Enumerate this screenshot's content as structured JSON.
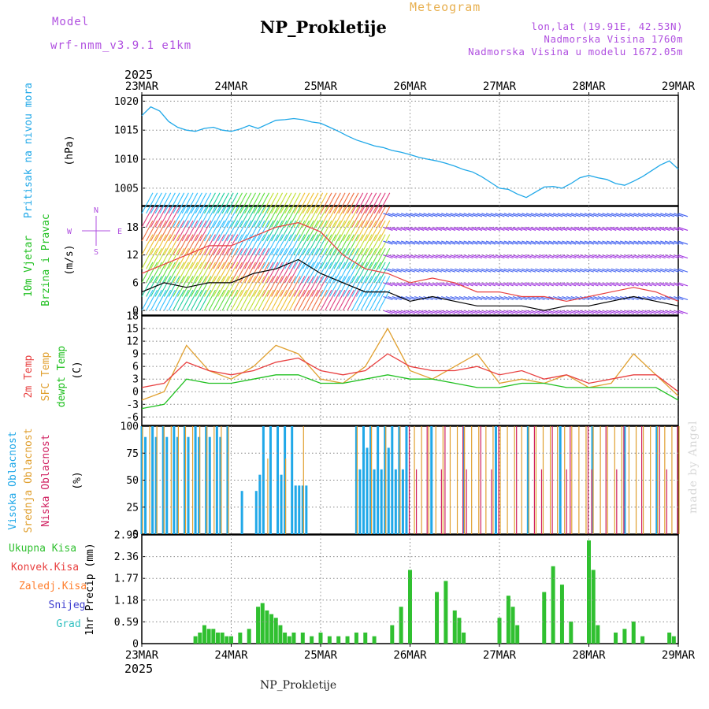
{
  "header": {
    "model_label": "Model",
    "model_name": "wrf-nmm_v3.9.1 e1km",
    "title": "NP_Prokletije",
    "meteogram_label": "Meteogram",
    "lonlat": "lon,lat (19.91E, 42.53N)",
    "elevation": "Nadmorska Visina 1760m",
    "model_elevation": "Nadmorska Visina u modelu 1672.05m",
    "footer_title": "NP_Prokletije",
    "made_by": "made by Angel"
  },
  "colors": {
    "pressure": "#20a8e8",
    "wind_label": "#20c020",
    "wind_purple": "#b050e0",
    "temp2m": "#e84040",
    "sfc_temp": "#e0a030",
    "dewpoint": "#20c020",
    "cloud_high": "#20a8e8",
    "cloud_mid": "#e0a030",
    "cloud_low": "#d02060",
    "precip_total": "#30c030",
    "precip_conv": "#e84040",
    "precip_grid": "#ff8030",
    "snow": "#4040d0",
    "hail": "#30c0c0"
  },
  "chart_data": [
    {
      "type": "line",
      "panel": "pressure",
      "year": "2025",
      "x_ticks": [
        "23MAR",
        "24MAR",
        "25MAR",
        "26MAR",
        "27MAR",
        "28MAR",
        "29MAR"
      ],
      "ylabel_left": "Pritisak na nivou mora",
      "ylabel_unit": "(hPa)",
      "yticks": [
        "1005",
        "1010",
        "1015",
        "1020"
      ],
      "ylim": [
        1002,
        1021
      ],
      "x_days": [
        0,
        0.1,
        0.2,
        0.3,
        0.4,
        0.5,
        0.6,
        0.7,
        0.8,
        0.9,
        1.0,
        1.1,
        1.2,
        1.3,
        1.4,
        1.5,
        1.6,
        1.7,
        1.8,
        1.9,
        2.0,
        2.1,
        2.2,
        2.3,
        2.4,
        2.5,
        2.6,
        2.7,
        2.8,
        2.9,
        3.0,
        3.1,
        3.2,
        3.3,
        3.4,
        3.5,
        3.6,
        3.7,
        3.8,
        3.9,
        4.0,
        4.1,
        4.2,
        4.3,
        4.4,
        4.5,
        4.6,
        4.7,
        4.8,
        4.9,
        5.0,
        5.1,
        5.2,
        5.3,
        5.4,
        5.5,
        5.6,
        5.7,
        5.8,
        5.9,
        6.0
      ],
      "values": [
        1017.5,
        1019.0,
        1018.3,
        1016.5,
        1015.5,
        1015.0,
        1014.8,
        1015.3,
        1015.5,
        1015.0,
        1014.8,
        1015.2,
        1015.8,
        1015.3,
        1016.0,
        1016.7,
        1016.8,
        1017.0,
        1016.8,
        1016.4,
        1016.2,
        1015.5,
        1014.8,
        1014.0,
        1013.3,
        1012.8,
        1012.3,
        1012.0,
        1011.5,
        1011.2,
        1010.8,
        1010.3,
        1010.0,
        1009.7,
        1009.3,
        1008.8,
        1008.2,
        1007.8,
        1007.0,
        1006.0,
        1005.0,
        1004.8,
        1004.0,
        1003.4,
        1004.3,
        1005.2,
        1005.3,
        1005.0,
        1005.8,
        1006.8,
        1007.2,
        1006.8,
        1006.5,
        1005.8,
        1005.5,
        1006.2,
        1007.0,
        1008.0,
        1009.0,
        1009.7,
        1008.3
      ]
    },
    {
      "type": "line",
      "panel": "wind",
      "ylabel_left1": "10m Vjetar",
      "ylabel_left2": "Brzina i Pravac",
      "ylabel_unit": "(m/s)",
      "compass": {
        "n": "N",
        "s": "S",
        "w": "W",
        "e": "E"
      },
      "yticks": [
        "0",
        "6",
        "12",
        "18"
      ],
      "ylim": [
        -1,
        22.5
      ],
      "x_days": [
        0,
        0.25,
        0.5,
        0.75,
        1.0,
        1.25,
        1.5,
        1.75,
        2.0,
        2.25,
        2.5,
        2.75,
        3.0,
        3.25,
        3.5,
        3.75,
        4.0,
        4.25,
        4.5,
        4.75,
        5.0,
        5.25,
        5.5,
        5.75,
        6.0
      ],
      "speed": [
        4,
        6,
        5,
        6,
        6,
        8,
        9,
        11,
        8,
        6,
        4,
        4,
        2,
        3,
        2,
        1,
        1,
        1,
        0,
        1,
        1,
        2,
        3,
        2,
        1
      ],
      "gust": [
        8,
        10,
        12,
        14,
        14,
        16,
        18,
        19,
        17,
        12,
        9,
        8,
        6,
        7,
        6,
        4,
        4,
        3,
        3,
        2,
        3,
        4,
        5,
        4,
        2
      ]
    },
    {
      "type": "line",
      "panel": "temperature",
      "ylabel_labels": [
        "2m Temp",
        "SFC Temp",
        "dewpt Temp"
      ],
      "ylabel_unit": "(C)",
      "yticks": [
        "-6",
        "-3",
        "0",
        "3",
        "6",
        "9",
        "12",
        "15",
        "18"
      ],
      "ylim": [
        -8,
        18
      ],
      "x_days": [
        0,
        0.25,
        0.5,
        0.75,
        1.0,
        1.25,
        1.5,
        1.75,
        2.0,
        2.25,
        2.5,
        2.75,
        3.0,
        3.25,
        3.5,
        3.75,
        4.0,
        4.25,
        4.5,
        4.75,
        5.0,
        5.25,
        5.5,
        5.75,
        6.0
      ],
      "t2m": [
        1,
        2,
        7,
        5,
        4,
        5,
        7,
        8,
        5,
        4,
        5,
        9,
        6,
        5,
        5,
        6,
        4,
        5,
        3,
        4,
        2,
        3,
        4,
        4,
        0
      ],
      "sfc": [
        -2,
        0,
        11,
        5,
        3,
        6,
        11,
        9,
        3,
        2,
        6,
        15,
        5,
        3,
        6,
        9,
        2,
        3,
        2,
        4,
        1,
        2,
        9,
        4,
        -1
      ],
      "dewpt": [
        -4,
        -3,
        3,
        2,
        2,
        3,
        4,
        4,
        2,
        2,
        3,
        4,
        3,
        3,
        2,
        1,
        1,
        2,
        2,
        1,
        1,
        1,
        1,
        1,
        -2
      ]
    },
    {
      "type": "bar",
      "panel": "clouds",
      "ylabel_labels": [
        "Visoka Oblacnost",
        "Srednja Oblacnost",
        "Niska Oblacnost"
      ],
      "ylabel_unit": "(%)",
      "yticks": [
        "0",
        "25",
        "50",
        "75",
        "100"
      ],
      "ylim": [
        0,
        100
      ],
      "made_by": "made by Angel"
    },
    {
      "type": "bar",
      "panel": "precipitation",
      "legend": [
        "Ukupna Kisa",
        "Konvek.Kisa",
        "Zaledj.Kisa",
        "Snijeg",
        "Grad"
      ],
      "ylabel": "1hr Precip (mm)",
      "yticks": [
        "0",
        "0.59",
        "1.18",
        "1.77",
        "2.36",
        "2.95"
      ],
      "ylim": [
        0,
        2.95
      ],
      "x_ticks": [
        "23MAR",
        "24MAR",
        "25MAR",
        "26MAR",
        "27MAR",
        "28MAR",
        "29MAR"
      ],
      "year": "2025",
      "x_days": [
        0.6,
        0.65,
        0.7,
        0.75,
        0.8,
        0.85,
        0.9,
        0.95,
        1.0,
        1.1,
        1.2,
        1.3,
        1.35,
        1.4,
        1.45,
        1.5,
        1.55,
        1.6,
        1.65,
        1.7,
        1.8,
        1.9,
        2.0,
        2.1,
        2.2,
        2.3,
        2.4,
        2.5,
        2.6,
        2.8,
        2.9,
        3.0,
        3.3,
        3.4,
        3.5,
        3.55,
        3.6,
        4.0,
        4.1,
        4.15,
        4.2,
        4.5,
        4.6,
        4.7,
        4.8,
        5.0,
        5.05,
        5.1,
        5.3,
        5.4,
        5.5,
        5.6,
        5.9,
        5.95
      ],
      "values": [
        0.2,
        0.3,
        0.5,
        0.4,
        0.4,
        0.3,
        0.3,
        0.2,
        0.2,
        0.3,
        0.4,
        1.0,
        1.1,
        0.9,
        0.8,
        0.7,
        0.5,
        0.3,
        0.2,
        0.3,
        0.3,
        0.2,
        0.3,
        0.2,
        0.2,
        0.2,
        0.3,
        0.3,
        0.2,
        0.5,
        1.0,
        2.0,
        1.4,
        1.7,
        0.9,
        0.7,
        0.3,
        0.7,
        1.3,
        1.0,
        0.5,
        1.4,
        2.1,
        1.6,
        0.6,
        2.8,
        2.0,
        0.5,
        0.3,
        0.4,
        0.6,
        0.2,
        0.3,
        0.2
      ]
    }
  ]
}
